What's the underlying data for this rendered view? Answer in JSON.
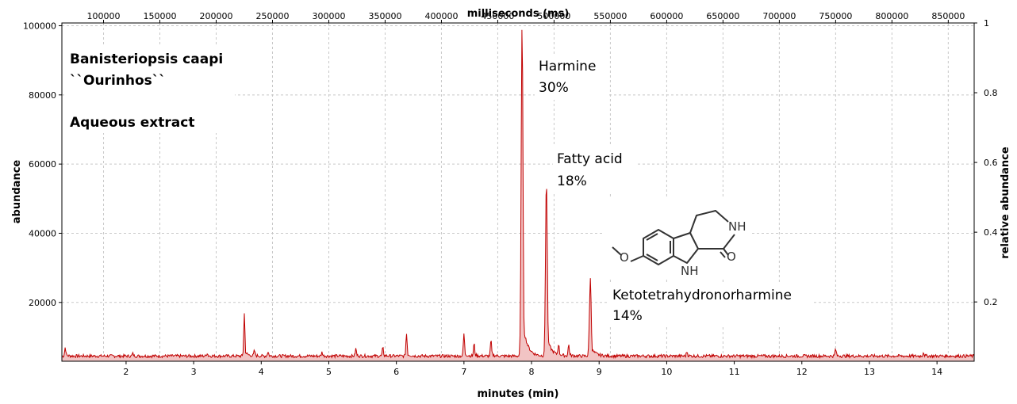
{
  "chart_data": {
    "type": "line",
    "title": "",
    "xlabel": "minutes (min)",
    "ylabel": "abundance",
    "x2label": "milliseconds (ms)",
    "y2label": "relative abundance",
    "xlim": [
      1.05,
      14.55
    ],
    "ylim": [
      3000,
      100800
    ],
    "x2lim": [
      63000,
      873000
    ],
    "y2lim": [
      0.03,
      1.0
    ],
    "x_ticks": [
      2,
      3,
      4,
      5,
      6,
      7,
      8,
      9,
      10,
      11,
      12,
      13,
      14
    ],
    "y_ticks": [
      20000,
      40000,
      60000,
      80000,
      100000
    ],
    "x2_ticks": [
      100000,
      150000,
      200000,
      250000,
      300000,
      350000,
      400000,
      450000,
      500000,
      550000,
      600000,
      650000,
      700000,
      750000,
      800000,
      850000
    ],
    "y2_ticks": [
      0.2,
      0.4,
      0.6,
      0.8,
      1
    ],
    "grid": true,
    "color": "#c00000",
    "baseline": 4500,
    "peaks": [
      {
        "x": 1.1,
        "y": 7000
      },
      {
        "x": 2.1,
        "y": 5200
      },
      {
        "x": 3.2,
        "y": 5400
      },
      {
        "x": 3.75,
        "y": 16800
      },
      {
        "x": 3.9,
        "y": 6000
      },
      {
        "x": 4.1,
        "y": 5800
      },
      {
        "x": 4.9,
        "y": 5600
      },
      {
        "x": 5.4,
        "y": 6600
      },
      {
        "x": 5.8,
        "y": 6800
      },
      {
        "x": 6.15,
        "y": 11000
      },
      {
        "x": 7.0,
        "y": 11000
      },
      {
        "x": 7.15,
        "y": 8000
      },
      {
        "x": 7.4,
        "y": 9000
      },
      {
        "x": 7.86,
        "y": 100500
      },
      {
        "x": 8.22,
        "y": 55500
      },
      {
        "x": 8.4,
        "y": 7600
      },
      {
        "x": 8.55,
        "y": 7800
      },
      {
        "x": 8.87,
        "y": 26800
      },
      {
        "x": 10.3,
        "y": 5800
      },
      {
        "x": 12.5,
        "y": 6500
      },
      {
        "x": 13.8,
        "y": 5600
      }
    ]
  },
  "annotations": {
    "sample_line1": "Banisteriopsis caapi",
    "sample_line2": "``Ourinhos``",
    "extract": "Aqueous extract",
    "harmine": "Harmine",
    "harmine_pct": "30%",
    "fatty": "Fatty acid",
    "fatty_pct": "18%",
    "keto": "Ketotetrahydronorharmine",
    "keto_pct": "14%",
    "nh_label": "NH",
    "nh2_label": "NH",
    "o_label": "O",
    "ome_label": "O"
  }
}
